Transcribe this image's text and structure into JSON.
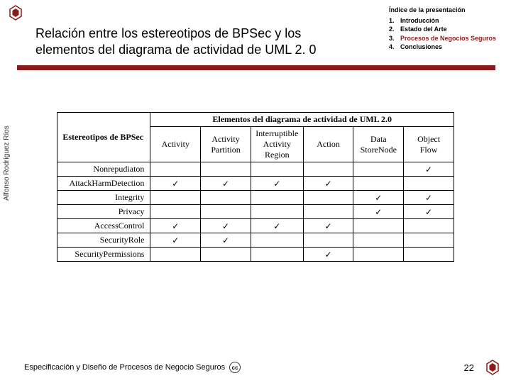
{
  "logo": {
    "color": "#8b1a1a"
  },
  "title": "Relación entre los estereotipos de BPSec y los elementos del diagrama de actividad  de UML 2. 0",
  "index": {
    "title": "Índice de la presentación",
    "items": [
      {
        "num": "1.",
        "text": "Introducción",
        "highlight": false
      },
      {
        "num": "2.",
        "text": "Estado del Arte",
        "highlight": false
      },
      {
        "num": "3.",
        "text": "Procesos de Negocios Seguros",
        "highlight": true
      },
      {
        "num": "4.",
        "text": "Conclusiones",
        "highlight": false
      }
    ]
  },
  "table": {
    "super_header": "Elementos del diagrama de actividad de UML 2.0",
    "row_group_label": "Estereotipos de BPSec",
    "columns": [
      "Activity",
      "Activity Partition",
      "Interruptible Activity Region",
      "Action",
      "Data StoreNode",
      "Object Flow"
    ],
    "rows": [
      {
        "label": "Nonrepudiaton",
        "cells": [
          "",
          "",
          "",
          "",
          "",
          "✓"
        ]
      },
      {
        "label": "AttackHarmDetection",
        "cells": [
          "✓",
          "✓",
          "✓",
          "✓",
          "",
          ""
        ]
      },
      {
        "label": "Integrity",
        "cells": [
          "",
          "",
          "",
          "",
          "✓",
          "✓"
        ]
      },
      {
        "label": "Privacy",
        "cells": [
          "",
          "",
          "",
          "",
          "✓",
          "✓"
        ]
      },
      {
        "label": "AccessControl",
        "cells": [
          "✓",
          "✓",
          "✓",
          "✓",
          "",
          ""
        ]
      },
      {
        "label": "SecurityRole",
        "cells": [
          "✓",
          "✓",
          "",
          "",
          "",
          ""
        ]
      },
      {
        "label": "SecurityPermissions",
        "cells": [
          "",
          "",
          "",
          "✓",
          "",
          ""
        ]
      }
    ]
  },
  "author": "Alfonso Rodríguez Ríos",
  "footer": {
    "text": "Especificación y Diseño de Procesos de Negocio Seguros",
    "page": "22"
  },
  "colors": {
    "accent": "#8b1a1a",
    "highlight": "#8b1a1a",
    "text": "#000000"
  }
}
